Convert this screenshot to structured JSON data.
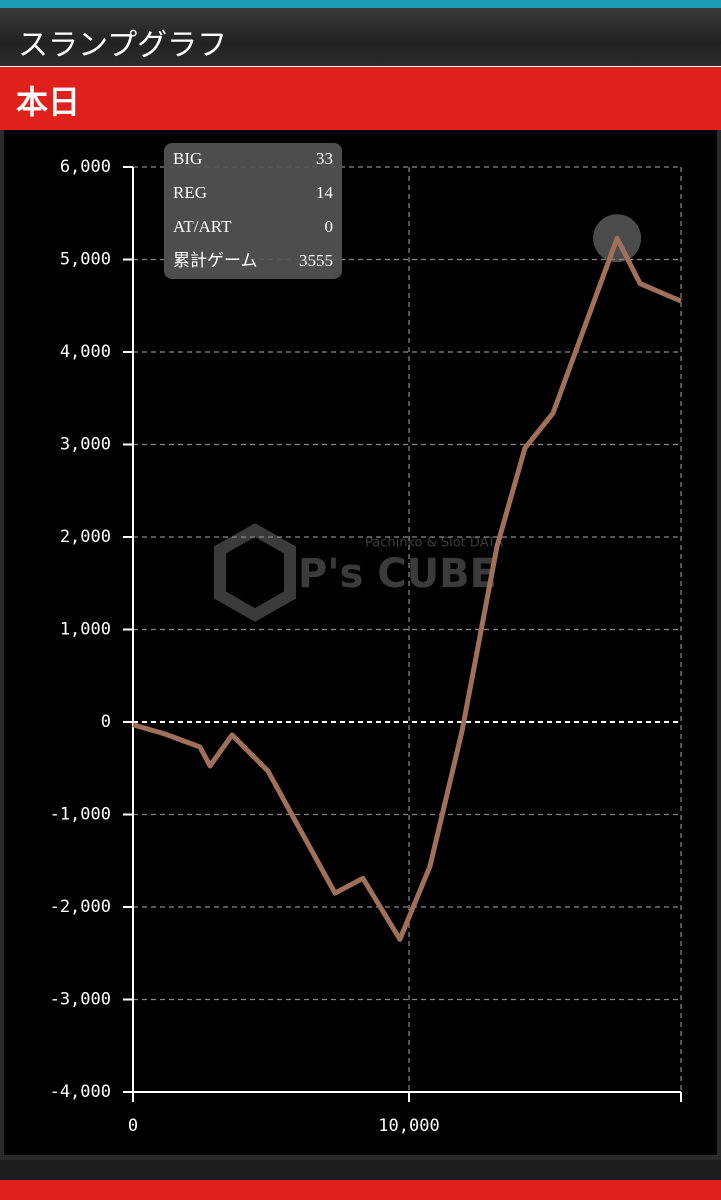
{
  "header": {
    "title": "スランプグラフ",
    "section": "本日"
  },
  "watermark": {
    "brand": "P's CUBE",
    "tagline": "Pachinko & Slot DATA"
  },
  "stats": [
    {
      "label": "BIG",
      "value": 33
    },
    {
      "label": "REG",
      "value": 14
    },
    {
      "label": "AT/ART",
      "value": 0
    },
    {
      "label": "累計ゲーム",
      "value": 3555
    }
  ],
  "chart_data": {
    "type": "line",
    "xlim": [
      0,
      19855
    ],
    "xticks": [
      0,
      {
        "value": 10000,
        "label": "10,000"
      }
    ],
    "ylim": [
      -4000,
      6000
    ],
    "yticks": [
      {
        "value": -4000,
        "label": "-4,000"
      },
      {
        "value": -3000,
        "label": "-3,000"
      },
      {
        "value": -2000,
        "label": "-2,000"
      },
      {
        "value": -1000,
        "label": "-1,000"
      },
      0,
      {
        "value": 1000,
        "label": "1,000"
      },
      {
        "value": 2000,
        "label": "2,000"
      },
      {
        "value": 3000,
        "label": "3,000"
      },
      {
        "value": 4000,
        "label": "4,000"
      },
      {
        "value": 5000,
        "label": "5,000"
      },
      {
        "value": 6000,
        "label": "6,000"
      }
    ],
    "grid": true,
    "x": [
      0,
      1160,
      2430,
      2790,
      3590,
      4890,
      7320,
      8330,
      9670,
      10760,
      11920,
      13190,
      14200,
      15220,
      17540,
      18370,
      19855
    ],
    "series": [
      {
        "color": "#a0705a",
        "values": [
          -30,
          -130,
          -270,
          -475,
          -140,
          -530,
          -1850,
          -1690,
          -2350,
          -1560,
          -100,
          1900,
          2960,
          3340,
          5230,
          4740,
          4550
        ]
      }
    ]
  }
}
